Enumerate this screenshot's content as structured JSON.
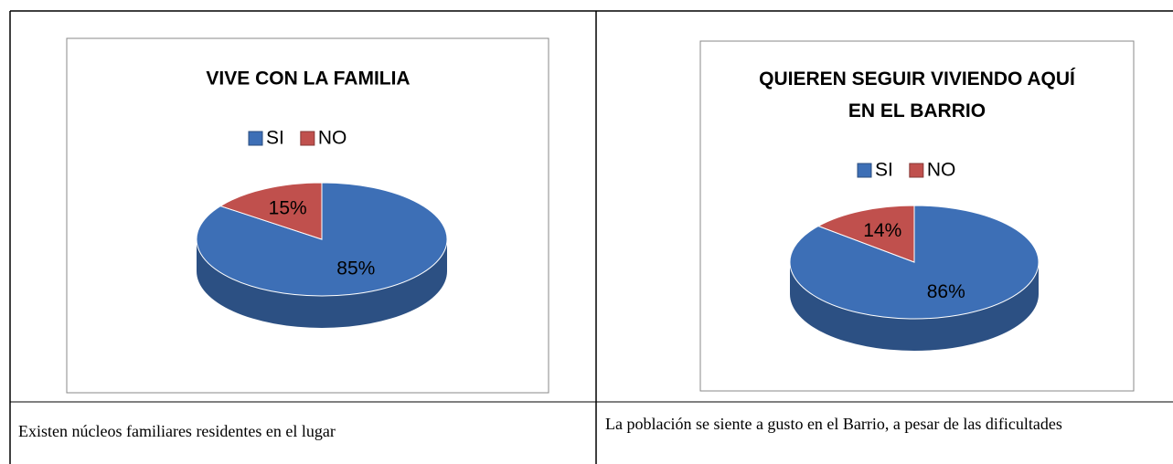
{
  "chart_data": [
    {
      "type": "pie",
      "title": "VIVE CON LA FAMILIA",
      "categories": [
        "SI",
        "NO"
      ],
      "values": [
        85,
        15
      ],
      "value_labels": [
        "85%",
        "15%"
      ],
      "colors": [
        "#3d6fb6",
        "#c0504d"
      ],
      "legend": "top"
    },
    {
      "type": "pie",
      "title": "QUIEREN SEGUIR VIVIENDO AQUÍ EN EL BARRIO",
      "categories": [
        "SI",
        "NO"
      ],
      "values": [
        86,
        14
      ],
      "value_labels": [
        "86%",
        "14%"
      ],
      "colors": [
        "#3d6fb6",
        "#c0504d"
      ],
      "legend": "top"
    }
  ],
  "captions": [
    "Existen núcleos familiares residentes en el lugar",
    "La población se siente a gusto en el Barrio, a pesar de las dificultades"
  ]
}
